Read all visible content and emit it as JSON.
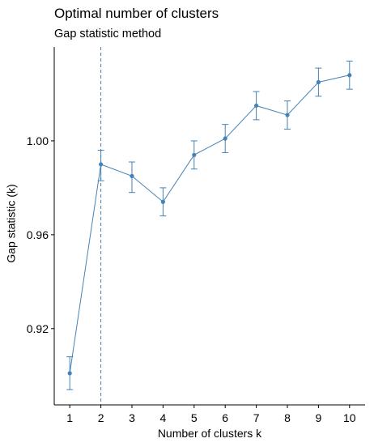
{
  "chart_data": {
    "type": "line",
    "title": "Optimal number of clusters",
    "subtitle": "Gap statistic method",
    "xlabel": "Number of clusters k",
    "ylabel": "Gap statistic (k)",
    "x": [
      "1",
      "2",
      "3",
      "4",
      "5",
      "6",
      "7",
      "8",
      "9",
      "10"
    ],
    "series": [
      {
        "values": [
          0.901,
          0.99,
          0.985,
          0.974,
          0.994,
          1.001,
          1.015,
          1.011,
          1.025,
          1.028
        ],
        "error_low": [
          0.894,
          0.983,
          0.978,
          0.968,
          0.988,
          0.995,
          1.009,
          1.005,
          1.019,
          1.022
        ],
        "error_high": [
          0.908,
          0.996,
          0.991,
          0.98,
          1.0,
          1.007,
          1.021,
          1.017,
          1.031,
          1.034
        ],
        "color": "#4682B4"
      }
    ],
    "optimal_k": 2,
    "vline_style": "dashed",
    "y_ticks": [
      0.92,
      0.96,
      1.0
    ],
    "y_tick_labels": [
      "0.92",
      "0.96",
      "1.00"
    ],
    "ylim": [
      0.8875,
      1.04
    ],
    "xlim": [
      0.5,
      10.5
    ],
    "grid": false,
    "legend": "none"
  }
}
